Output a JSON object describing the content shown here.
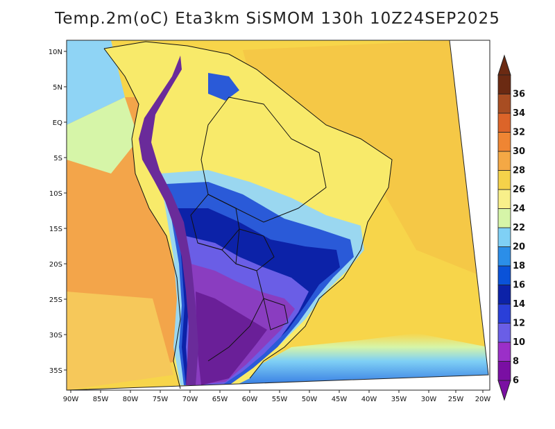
{
  "title": "Temp.2m(oC) Eta3km SiSMOM 130h 10Z24SEP2025",
  "longitude_ticks": [
    "90W",
    "85W",
    "80W",
    "75W",
    "70W",
    "65W",
    "60W",
    "55W",
    "50W",
    "45W",
    "40W",
    "35W",
    "30W",
    "25W",
    "20W"
  ],
  "latitude_ticks": [
    "10N",
    "5N",
    "EQ",
    "5S",
    "10S",
    "15S",
    "20S",
    "25S",
    "30S",
    "35S"
  ],
  "colorbar": {
    "labels": [
      "6",
      "8",
      "10",
      "12",
      "14",
      "16",
      "18",
      "20",
      "22",
      "24",
      "26",
      "28",
      "30",
      "32",
      "34",
      "36"
    ],
    "colors": [
      "#7a0fa3",
      "#9b2fc8",
      "#6a5ee6",
      "#2a3fd8",
      "#0c22a8",
      "#0a52d8",
      "#2b8ee8",
      "#7fd0f5",
      "#d6f5a8",
      "#f8f08a",
      "#f5d24a",
      "#f4a845",
      "#ef8533",
      "#dc6429",
      "#a84d22",
      "#6b2a12"
    ]
  },
  "colors": {
    "ocean_north_east": "#f7d54a",
    "ocean_pacific": "#f3a54a",
    "ocean_south": "#3d8de6",
    "cold_core": "#6a2b9a",
    "coastline": "#111111"
  }
}
